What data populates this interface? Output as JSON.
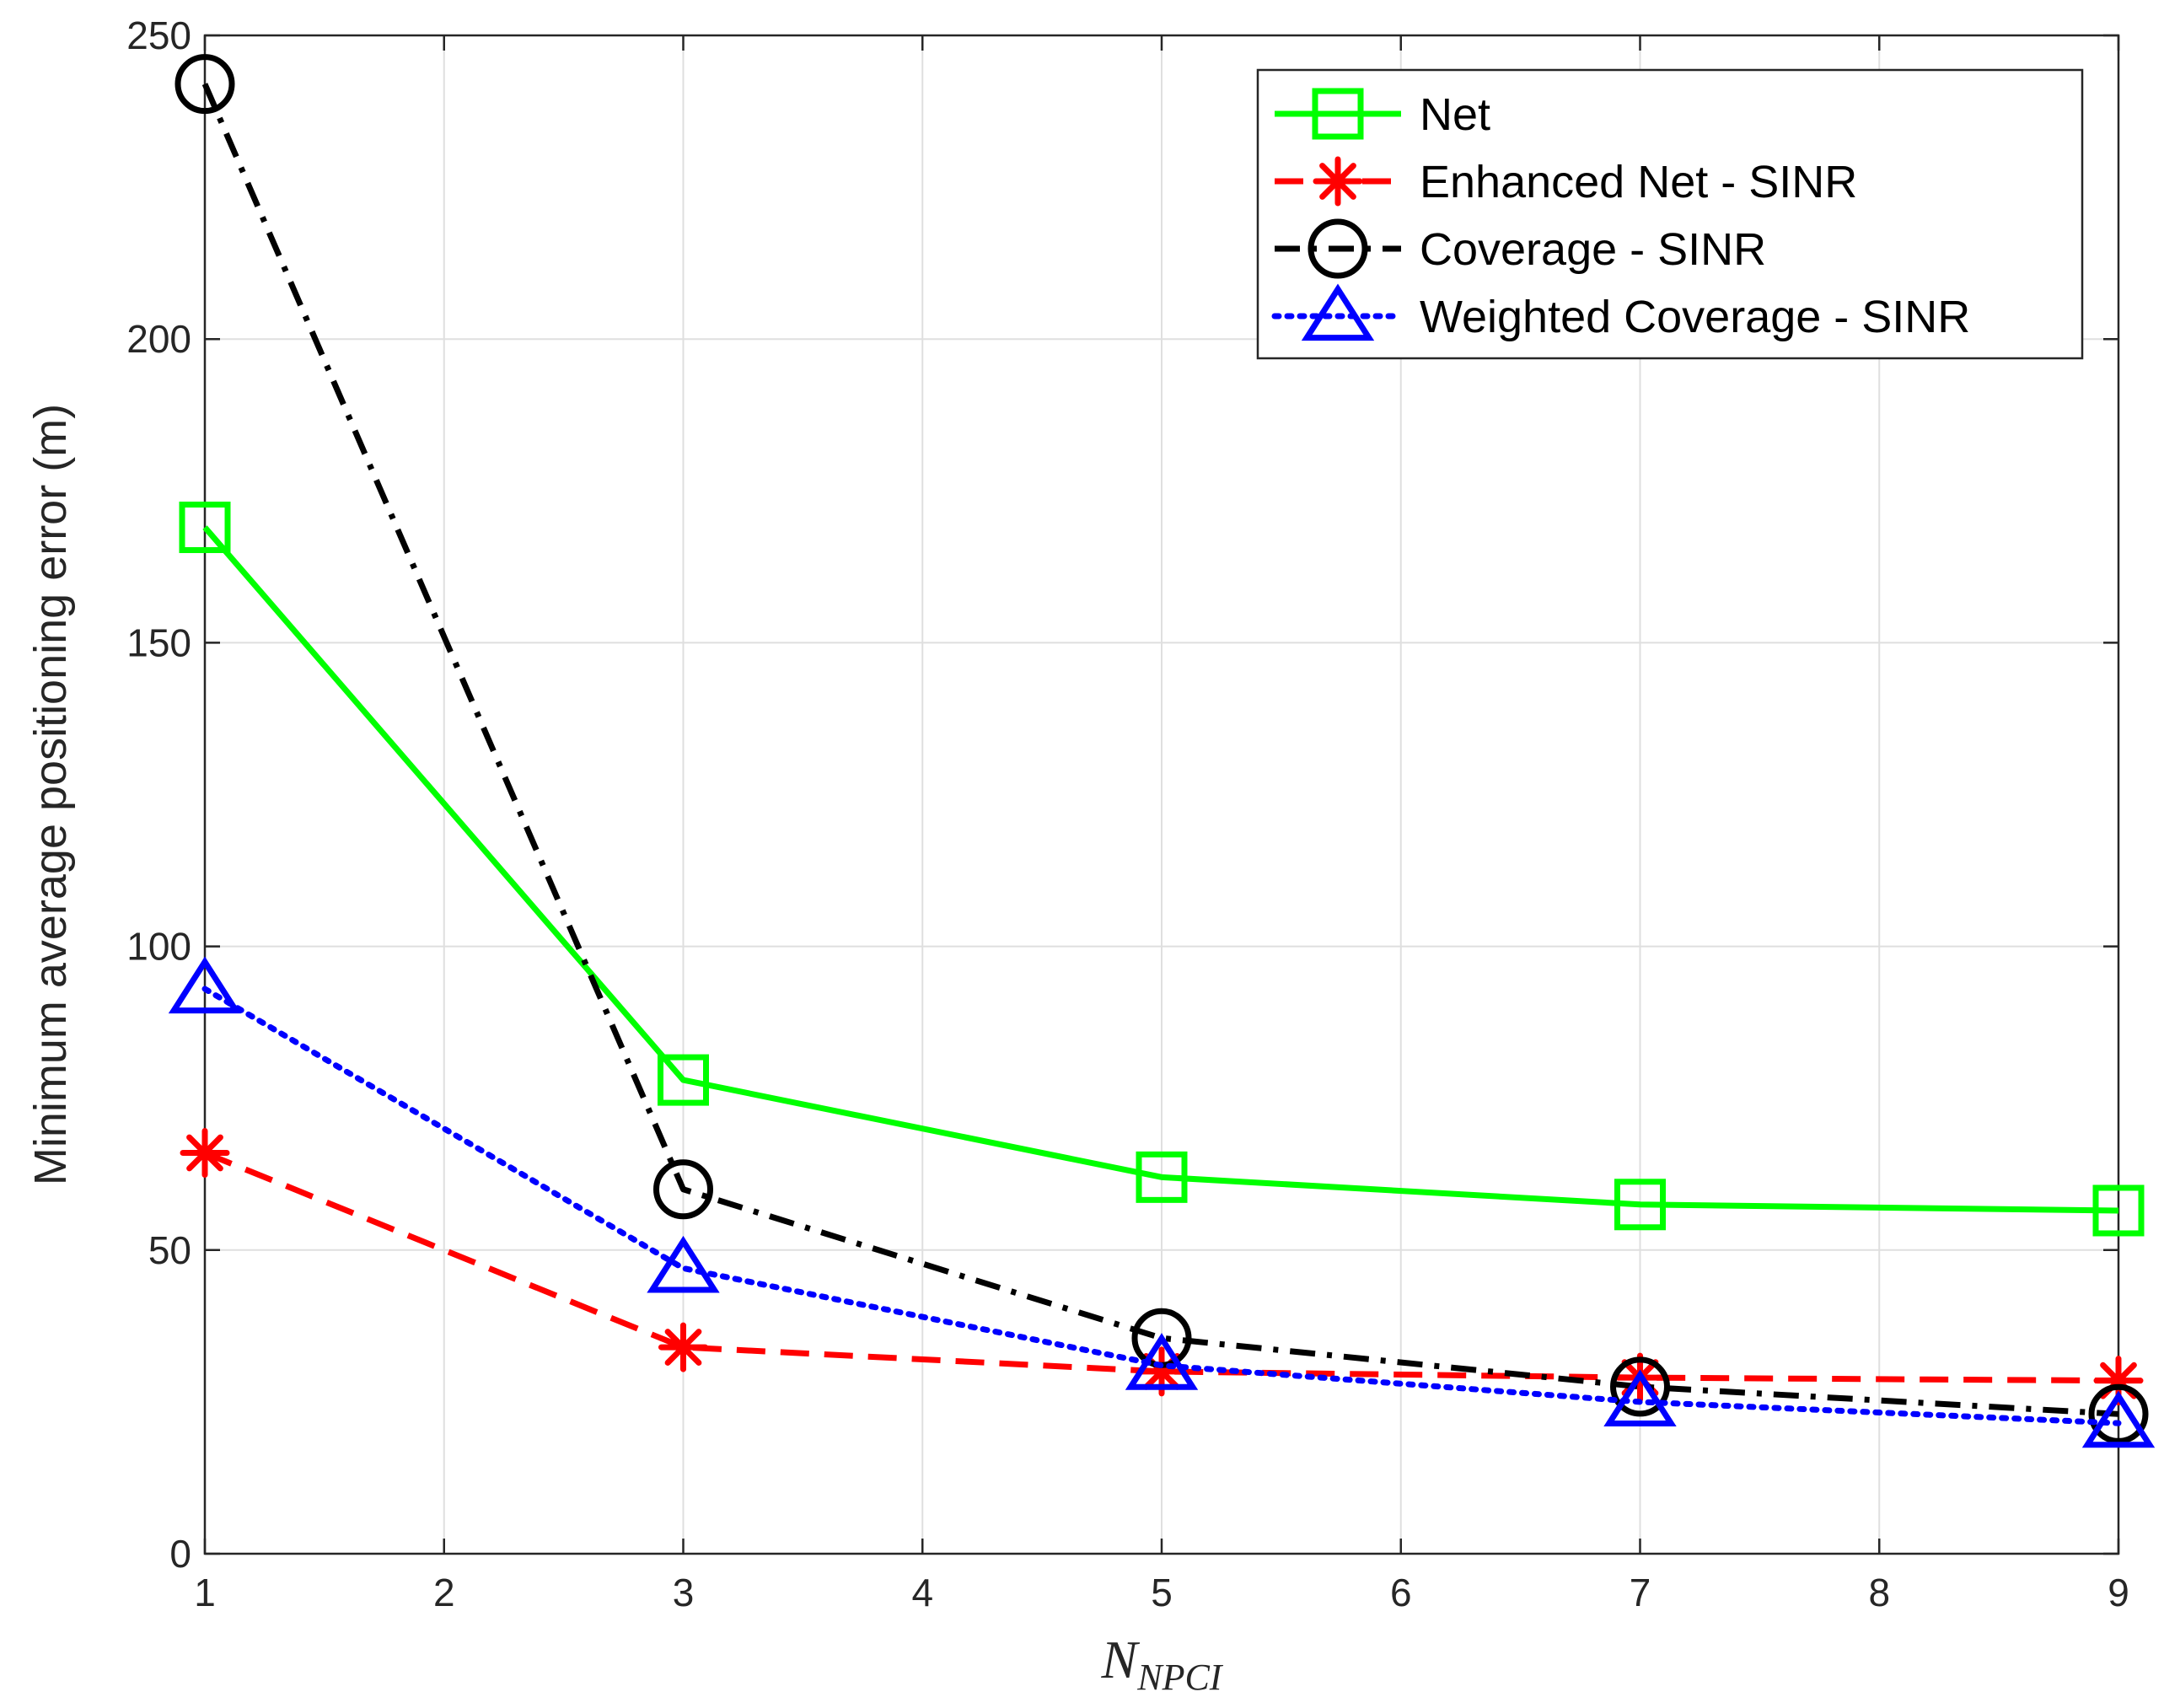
{
  "chart_data": {
    "type": "line",
    "title": "",
    "xlabel": {
      "main": "N",
      "sub": "NPCI"
    },
    "ylabel": "Minimum average positioning error (m)",
    "xlim": [
      1,
      9
    ],
    "ylim": [
      0,
      250
    ],
    "xticks": [
      1,
      2,
      3,
      4,
      5,
      6,
      7,
      8,
      9
    ],
    "yticks": [
      0,
      50,
      100,
      150,
      200,
      250
    ],
    "grid": true,
    "legend_position": "top-right",
    "x": [
      1,
      3,
      5,
      7,
      9
    ],
    "series": [
      {
        "name": "Net",
        "values": [
          169,
          78,
          62,
          57.5,
          56.5
        ],
        "color": "#00ff00",
        "dash": "solid",
        "marker": "square"
      },
      {
        "name": "Enhanced Net - SINR",
        "values": [
          66,
          34,
          30,
          29,
          28.5
        ],
        "color": "#ff0000",
        "dash": "dashed",
        "marker": "asterisk"
      },
      {
        "name": "Coverage - SINR",
        "values": [
          242,
          60,
          35.5,
          27.5,
          23
        ],
        "color": "#000000",
        "dash": "dashdot",
        "marker": "circle"
      },
      {
        "name": "Weighted Coverage - SINR",
        "values": [
          93,
          47,
          31,
          25,
          21.5
        ],
        "color": "#0000ff",
        "dash": "dotted",
        "marker": "triangle"
      }
    ]
  }
}
